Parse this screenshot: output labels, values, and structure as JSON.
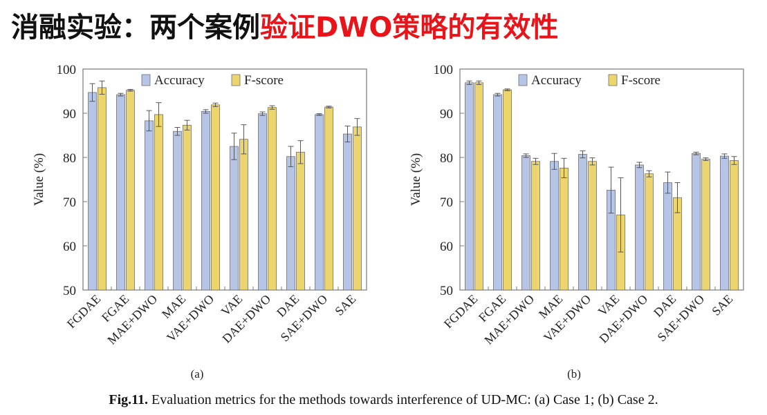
{
  "slide": {
    "title_black": "消融实验：两个案例",
    "title_red": "验证DWO策略的有效性"
  },
  "caption": {
    "fig_number": "Fig.11.",
    "text": " Evaluation metrics for the methods towards interference of UD-MC: (a) Case 1; (b) Case 2."
  },
  "colors": {
    "accuracy": "#b6c4e6",
    "fscore": "#ecd56e",
    "bar_edge": "#6e6e6e",
    "axis": "#777777"
  },
  "chart_data": [
    {
      "type": "bar",
      "panel_label": "(a)",
      "ylabel": "Value (%)",
      "ylim": [
        50,
        100
      ],
      "yticks": [
        "50",
        "60",
        "70",
        "80",
        "90",
        "100"
      ],
      "legend_position": "top-center",
      "grid": false,
      "categories": [
        "FGDAE",
        "FGAE",
        "MAE+DWO",
        "MAE",
        "VAE+DWO",
        "VAE",
        "DAE+DWO",
        "DAE",
        "SAE+DWO",
        "SAE"
      ],
      "series": [
        {
          "name": "Accuracy",
          "values": [
            94.7,
            94.2,
            88.3,
            85.9,
            90.4,
            82.5,
            89.9,
            80.2,
            89.7,
            85.3
          ],
          "errors": [
            2.0,
            0.3,
            2.3,
            0.9,
            0.4,
            3.0,
            0.4,
            2.3,
            0.2,
            1.8
          ]
        },
        {
          "name": "F-score",
          "values": [
            95.8,
            95.2,
            89.7,
            87.3,
            91.9,
            84.1,
            91.3,
            81.2,
            91.4,
            86.9
          ],
          "errors": [
            1.5,
            0.2,
            2.7,
            1.1,
            0.4,
            3.3,
            0.4,
            2.6,
            0.2,
            1.9
          ]
        }
      ]
    },
    {
      "type": "bar",
      "panel_label": "(b)",
      "ylabel": "Value (%)",
      "ylim": [
        50,
        100
      ],
      "yticks": [
        "50",
        "60",
        "70",
        "80",
        "90",
        "100"
      ],
      "legend_position": "top-center",
      "grid": false,
      "categories": [
        "FGDAE",
        "FGAE",
        "MAE+DWO",
        "MAE",
        "VAE+DWO",
        "VAE",
        "DAE+DWO",
        "DAE",
        "SAE+DWO",
        "SAE"
      ],
      "series": [
        {
          "name": "Accuracy",
          "values": [
            96.9,
            94.2,
            80.4,
            79.1,
            80.7,
            72.6,
            78.3,
            74.3,
            80.9,
            80.3
          ],
          "errors": [
            0.4,
            0.3,
            0.4,
            1.8,
            0.8,
            5.2,
            0.6,
            2.4,
            0.3,
            0.5
          ]
        },
        {
          "name": "F-score",
          "values": [
            96.9,
            95.3,
            79.1,
            77.6,
            79.1,
            67.0,
            76.3,
            70.9,
            79.6,
            79.3
          ],
          "errors": [
            0.4,
            0.2,
            0.7,
            2.2,
            0.8,
            8.4,
            0.7,
            3.4,
            0.3,
            0.9
          ]
        }
      ]
    }
  ]
}
